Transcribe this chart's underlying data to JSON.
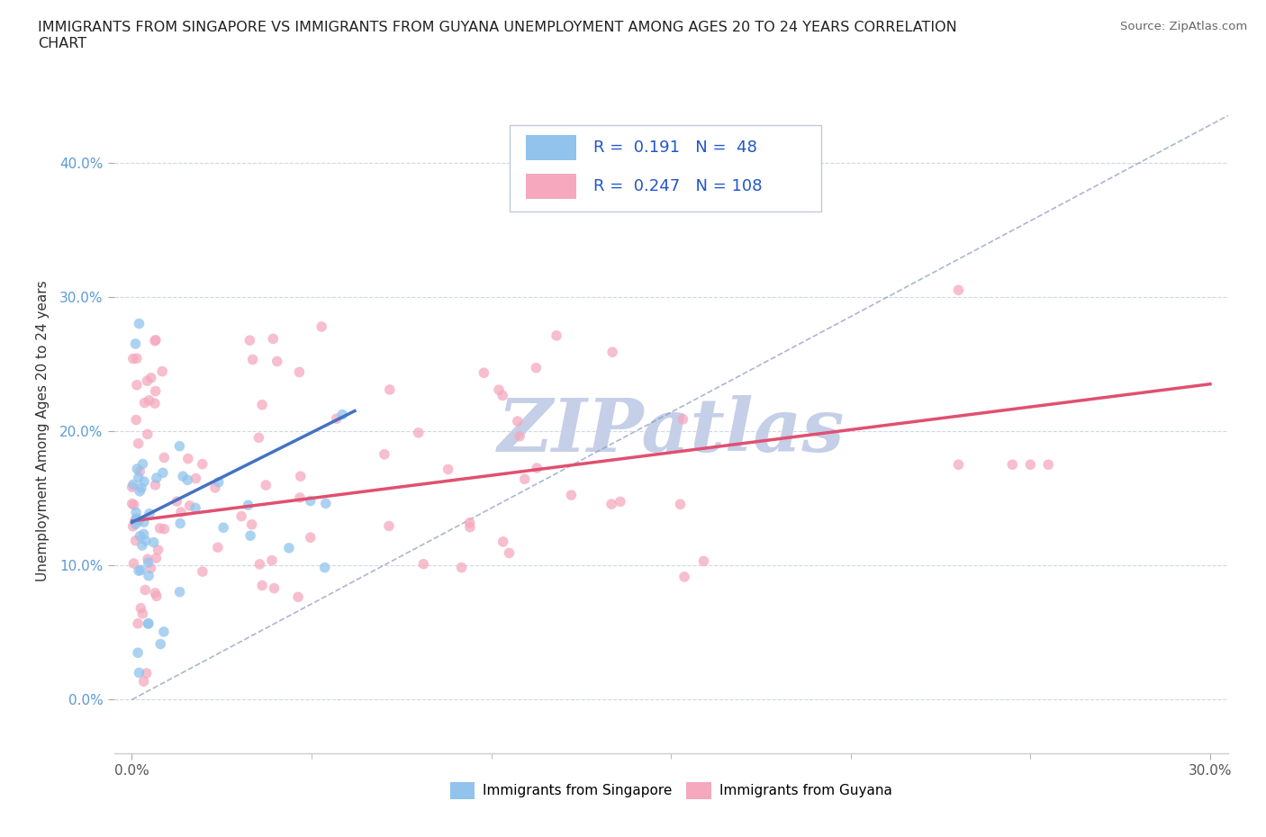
{
  "title": "IMMIGRANTS FROM SINGAPORE VS IMMIGRANTS FROM GUYANA UNEMPLOYMENT AMONG AGES 20 TO 24 YEARS CORRELATION\nCHART",
  "source_text": "Source: ZipAtlas.com",
  "ylabel": "Unemployment Among Ages 20 to 24 years",
  "xlim": [
    -0.005,
    0.305
  ],
  "ylim": [
    -0.04,
    0.44
  ],
  "xticks": [
    0.0,
    0.3
  ],
  "yticks": [
    0.0,
    0.1,
    0.2,
    0.3,
    0.4
  ],
  "xtick_labels": [
    "0.0%",
    "30.0%"
  ],
  "ytick_labels": [
    "0.0%",
    "10.0%",
    "20.0%",
    "30.0%",
    "40.0%"
  ],
  "xtick_minor": [
    0.05,
    0.1,
    0.15,
    0.2,
    0.25
  ],
  "singapore_color": "#91c3ed",
  "guyana_color": "#f5a8be",
  "singapore_R": 0.191,
  "singapore_N": 48,
  "guyana_R": 0.247,
  "guyana_N": 108,
  "singapore_line_color": "#4472c4",
  "guyana_line_color": "#e05070",
  "diagonal_line_color": "#8898bb",
  "watermark": "ZIPatlas",
  "watermark_color": "#c5cfe8",
  "legend_box_color": "#f0f4fa",
  "legend_border_color": "#c0cce0"
}
